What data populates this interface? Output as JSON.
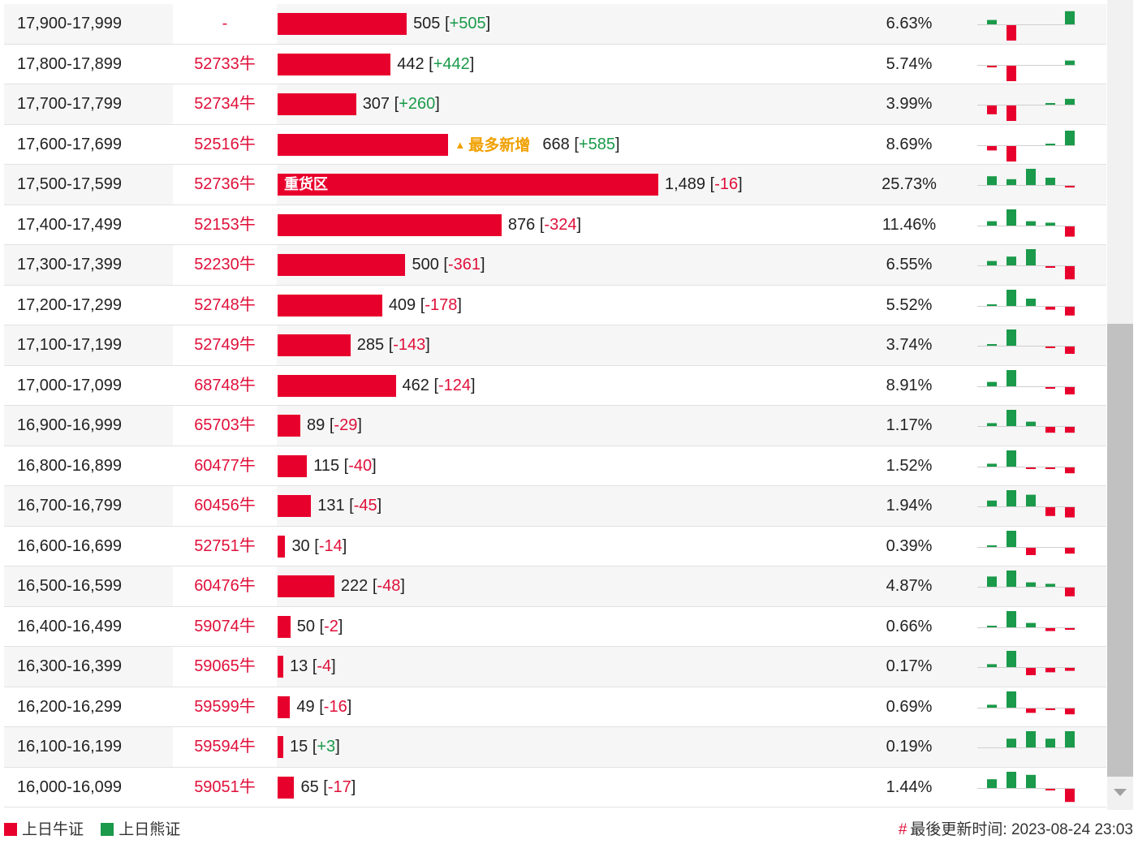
{
  "rows": [
    {
      "range": "17,900-17,999",
      "warrant": "-",
      "qty": 505,
      "change": "+505",
      "pct": "6.63%",
      "label": "",
      "hint": "",
      "spark": [
        {
          "v": 3,
          "c": "g"
        },
        {
          "v": -12,
          "c": "r"
        },
        {
          "v": 0,
          "c": "n"
        },
        {
          "v": 0,
          "c": "n"
        },
        {
          "v": 9,
          "c": "g"
        }
      ]
    },
    {
      "range": "17,800-17,899",
      "warrant": "52733牛",
      "qty": 442,
      "change": "+442",
      "pct": "5.74%",
      "label": "",
      "hint": "",
      "spark": [
        {
          "v": -1,
          "c": "r"
        },
        {
          "v": -11,
          "c": "r"
        },
        {
          "v": 0,
          "c": "n"
        },
        {
          "v": 0,
          "c": "n"
        },
        {
          "v": 3,
          "c": "g"
        }
      ]
    },
    {
      "range": "17,700-17,799",
      "warrant": "52734牛",
      "qty": 307,
      "change": "+260",
      "pct": "3.99%",
      "label": "",
      "hint": "",
      "spark": [
        {
          "v": -6,
          "c": "r"
        },
        {
          "v": -12,
          "c": "r"
        },
        {
          "v": 0,
          "c": "n"
        },
        {
          "v": 1,
          "c": "g"
        },
        {
          "v": 4,
          "c": "g"
        }
      ]
    },
    {
      "range": "17,600-17,699",
      "warrant": "52516牛",
      "qty": 668,
      "change": "+585",
      "pct": "8.69%",
      "label": "",
      "hint": "最多新增",
      "spark": [
        {
          "v": -3,
          "c": "r"
        },
        {
          "v": -12,
          "c": "r"
        },
        {
          "v": 0,
          "c": "n"
        },
        {
          "v": 1,
          "c": "g"
        },
        {
          "v": 10,
          "c": "g"
        }
      ]
    },
    {
      "range": "17,500-17,599",
      "warrant": "52736牛",
      "qty": 1489,
      "change": "-16",
      "pct": "25.73%",
      "label": "重货区",
      "hint": "",
      "spark": [
        {
          "v": 6,
          "c": "g"
        },
        {
          "v": 4,
          "c": "g"
        },
        {
          "v": 12,
          "c": "g"
        },
        {
          "v": 5,
          "c": "g"
        },
        {
          "v": -1,
          "c": "r"
        }
      ]
    },
    {
      "range": "17,400-17,499",
      "warrant": "52153牛",
      "qty": 876,
      "change": "-324",
      "pct": "11.46%",
      "label": "",
      "hint": "",
      "spark": [
        {
          "v": 3,
          "c": "g"
        },
        {
          "v": 12,
          "c": "g"
        },
        {
          "v": 3,
          "c": "g"
        },
        {
          "v": 2,
          "c": "g"
        },
        {
          "v": -7,
          "c": "r"
        }
      ]
    },
    {
      "range": "17,300-17,399",
      "warrant": "52230牛",
      "qty": 500,
      "change": "-361",
      "pct": "6.55%",
      "label": "",
      "hint": "",
      "spark": [
        {
          "v": 3,
          "c": "g"
        },
        {
          "v": 6,
          "c": "g"
        },
        {
          "v": 12,
          "c": "g"
        },
        {
          "v": -1,
          "c": "r"
        },
        {
          "v": -9,
          "c": "r"
        }
      ]
    },
    {
      "range": "17,200-17,299",
      "warrant": "52748牛",
      "qty": 409,
      "change": "-178",
      "pct": "5.52%",
      "label": "",
      "hint": "",
      "spark": [
        {
          "v": 1,
          "c": "g"
        },
        {
          "v": 12,
          "c": "g"
        },
        {
          "v": 5,
          "c": "g"
        },
        {
          "v": -2,
          "c": "r"
        },
        {
          "v": -6,
          "c": "r"
        }
      ]
    },
    {
      "range": "17,100-17,199",
      "warrant": "52749牛",
      "qty": 285,
      "change": "-143",
      "pct": "3.74%",
      "label": "",
      "hint": "",
      "spark": [
        {
          "v": 1,
          "c": "g"
        },
        {
          "v": 12,
          "c": "g"
        },
        {
          "v": 0,
          "c": "n"
        },
        {
          "v": -1,
          "c": "r"
        },
        {
          "v": -5,
          "c": "r"
        }
      ]
    },
    {
      "range": "17,000-17,099",
      "warrant": "68748牛",
      "qty": 462,
      "change": "-124",
      "pct": "8.91%",
      "label": "",
      "hint": "",
      "spark": [
        {
          "v": 3,
          "c": "g"
        },
        {
          "v": 12,
          "c": "g"
        },
        {
          "v": 0,
          "c": "n"
        },
        {
          "v": -1,
          "c": "r"
        },
        {
          "v": -5,
          "c": "r"
        }
      ]
    },
    {
      "range": "16,900-16,999",
      "warrant": "65703牛",
      "qty": 89,
      "change": "-29",
      "pct": "1.17%",
      "label": "",
      "hint": "",
      "spark": [
        {
          "v": 2,
          "c": "g"
        },
        {
          "v": 12,
          "c": "g"
        },
        {
          "v": 3,
          "c": "g"
        },
        {
          "v": -4,
          "c": "r"
        },
        {
          "v": -4,
          "c": "r"
        }
      ]
    },
    {
      "range": "16,800-16,899",
      "warrant": "60477牛",
      "qty": 115,
      "change": "-40",
      "pct": "1.52%",
      "label": "",
      "hint": "",
      "spark": [
        {
          "v": 2,
          "c": "g"
        },
        {
          "v": 12,
          "c": "g"
        },
        {
          "v": -1,
          "c": "r"
        },
        {
          "v": -1,
          "c": "r"
        },
        {
          "v": -4,
          "c": "r"
        }
      ]
    },
    {
      "range": "16,700-16,799",
      "warrant": "60456牛",
      "qty": 131,
      "change": "-45",
      "pct": "1.94%",
      "label": "",
      "hint": "",
      "spark": [
        {
          "v": 4,
          "c": "g"
        },
        {
          "v": 12,
          "c": "g"
        },
        {
          "v": 8,
          "c": "g"
        },
        {
          "v": -6,
          "c": "r"
        },
        {
          "v": -7,
          "c": "r"
        }
      ]
    },
    {
      "range": "16,600-16,699",
      "warrant": "52751牛",
      "qty": 30,
      "change": "-14",
      "pct": "0.39%",
      "label": "",
      "hint": "",
      "spark": [
        {
          "v": 1,
          "c": "g"
        },
        {
          "v": 12,
          "c": "g"
        },
        {
          "v": -5,
          "c": "r"
        },
        {
          "v": 0,
          "c": "n"
        },
        {
          "v": -4,
          "c": "r"
        }
      ]
    },
    {
      "range": "16,500-16,599",
      "warrant": "60476牛",
      "qty": 222,
      "change": "-48",
      "pct": "4.87%",
      "label": "",
      "hint": "",
      "spark": [
        {
          "v": 7,
          "c": "g"
        },
        {
          "v": 12,
          "c": "g"
        },
        {
          "v": 3,
          "c": "g"
        },
        {
          "v": 2,
          "c": "g"
        },
        {
          "v": -6,
          "c": "r"
        }
      ]
    },
    {
      "range": "16,400-16,499",
      "warrant": "59074牛",
      "qty": 50,
      "change": "-2",
      "pct": "0.66%",
      "label": "",
      "hint": "",
      "spark": [
        {
          "v": 1,
          "c": "g"
        },
        {
          "v": 12,
          "c": "g"
        },
        {
          "v": 3,
          "c": "g"
        },
        {
          "v": -2,
          "c": "r"
        },
        {
          "v": -1,
          "c": "r"
        }
      ]
    },
    {
      "range": "16,300-16,399",
      "warrant": "59065牛",
      "qty": 13,
      "change": "-4",
      "pct": "0.17%",
      "label": "",
      "hint": "",
      "spark": [
        {
          "v": 2,
          "c": "g"
        },
        {
          "v": 12,
          "c": "g"
        },
        {
          "v": -5,
          "c": "r"
        },
        {
          "v": -3,
          "c": "r"
        },
        {
          "v": -2,
          "c": "r"
        }
      ]
    },
    {
      "range": "16,200-16,299",
      "warrant": "59599牛",
      "qty": 49,
      "change": "-16",
      "pct": "0.69%",
      "label": "",
      "hint": "",
      "spark": [
        {
          "v": 2,
          "c": "g"
        },
        {
          "v": 12,
          "c": "g"
        },
        {
          "v": -3,
          "c": "r"
        },
        {
          "v": -1,
          "c": "r"
        },
        {
          "v": -4,
          "c": "r"
        }
      ]
    },
    {
      "range": "16,100-16,199",
      "warrant": "59594牛",
      "qty": 15,
      "change": "+3",
      "pct": "0.19%",
      "label": "",
      "hint": "",
      "spark": [
        {
          "v": 0,
          "c": "n"
        },
        {
          "v": 6,
          "c": "g"
        },
        {
          "v": 12,
          "c": "g"
        },
        {
          "v": 6,
          "c": "g"
        },
        {
          "v": 12,
          "c": "g"
        }
      ]
    },
    {
      "range": "16,000-16,099",
      "warrant": "59051牛",
      "qty": 65,
      "change": "-17",
      "pct": "1.44%",
      "label": "",
      "hint": "",
      "spark": [
        {
          "v": 6,
          "c": "g"
        },
        {
          "v": 12,
          "c": "g"
        },
        {
          "v": 9,
          "c": "g"
        },
        {
          "v": -1,
          "c": "r"
        },
        {
          "v": -9,
          "c": "r"
        }
      ]
    }
  ],
  "qty_max": 1489,
  "colors": {
    "bull": "#e8002d",
    "bear": "#1a9a4a",
    "pos_text": "#1a9a4a",
    "neg_text": "#e0103a",
    "hint": "#f0a000"
  },
  "legend": {
    "bull_label": "上日牛证",
    "bear_label": "上日熊证"
  },
  "update": {
    "hash": "#",
    "label": "最後更新时间:",
    "time": "2023-08-24 23:03"
  }
}
